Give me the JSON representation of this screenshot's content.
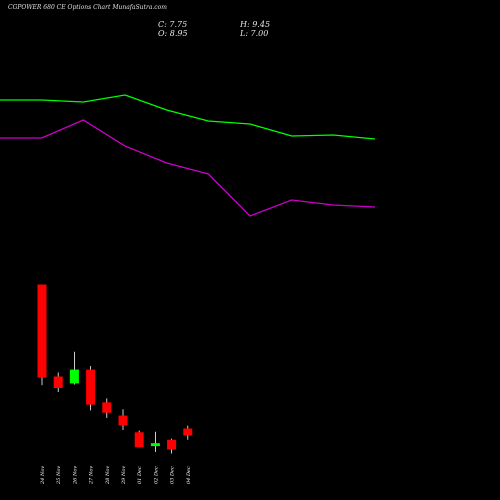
{
  "header": {
    "title": "CGPOWER 680  CE Options  Chart MunafaSutra.com",
    "close_label": "C: 7.75",
    "high_label": "H: 9.45",
    "open_label": "O: 8.95",
    "low_label": "L: 7.00"
  },
  "colors": {
    "background": "#000000",
    "up": "#00ff00",
    "down": "#ff0000",
    "line_upper": "#00ff00",
    "line_lower": "#cc00cc",
    "text": "#ffffff"
  },
  "chart_data": {
    "type": "candlestick",
    "categories": [
      "24 Nov",
      "25 Nov",
      "26 Nov",
      "27 Nov",
      "28 Nov",
      "29 Nov",
      "01 Dec",
      "02 Dec",
      "03 Dec",
      "04 Dec"
    ],
    "candles": [
      {
        "open": 34.0,
        "high": 34.0,
        "low": 16.5,
        "close": 17.8
      },
      {
        "open": 18.0,
        "high": 18.7,
        "low": 15.3,
        "close": 16.0
      },
      {
        "open": 16.8,
        "high": 22.3,
        "low": 16.6,
        "close": 19.2
      },
      {
        "open": 19.2,
        "high": 19.8,
        "low": 12.1,
        "close": 13.1
      },
      {
        "open": 13.5,
        "high": 14.2,
        "low": 10.8,
        "close": 11.7
      },
      {
        "open": 11.2,
        "high": 12.3,
        "low": 8.7,
        "close": 9.5
      },
      {
        "open": 8.3,
        "high": 8.6,
        "low": 5.7,
        "close": 5.7
      },
      {
        "open": 5.9,
        "high": 8.4,
        "low": 4.9,
        "close": 6.4
      },
      {
        "open": 7.0,
        "high": 7.2,
        "low": 4.6,
        "close": 5.3
      },
      {
        "open": 8.95,
        "high": 9.45,
        "low": 7.0,
        "close": 7.75
      }
    ],
    "series": [
      {
        "values": [
          100.0,
          100.0,
          99.0,
          102.5,
          95.0,
          89.5,
          88.0,
          82.0,
          82.5,
          80.5
        ]
      },
      {
        "values": [
          81.0,
          81.0,
          90.0,
          77.0,
          68.5,
          63.0,
          42.0,
          50.0,
          47.5,
          46.5
        ]
      }
    ],
    "x_range": [
      1,
      9
    ],
    "y_range_candles": [
      0,
      40
    ],
    "y_range_lines": [
      0,
      140
    ],
    "grid": false
  }
}
